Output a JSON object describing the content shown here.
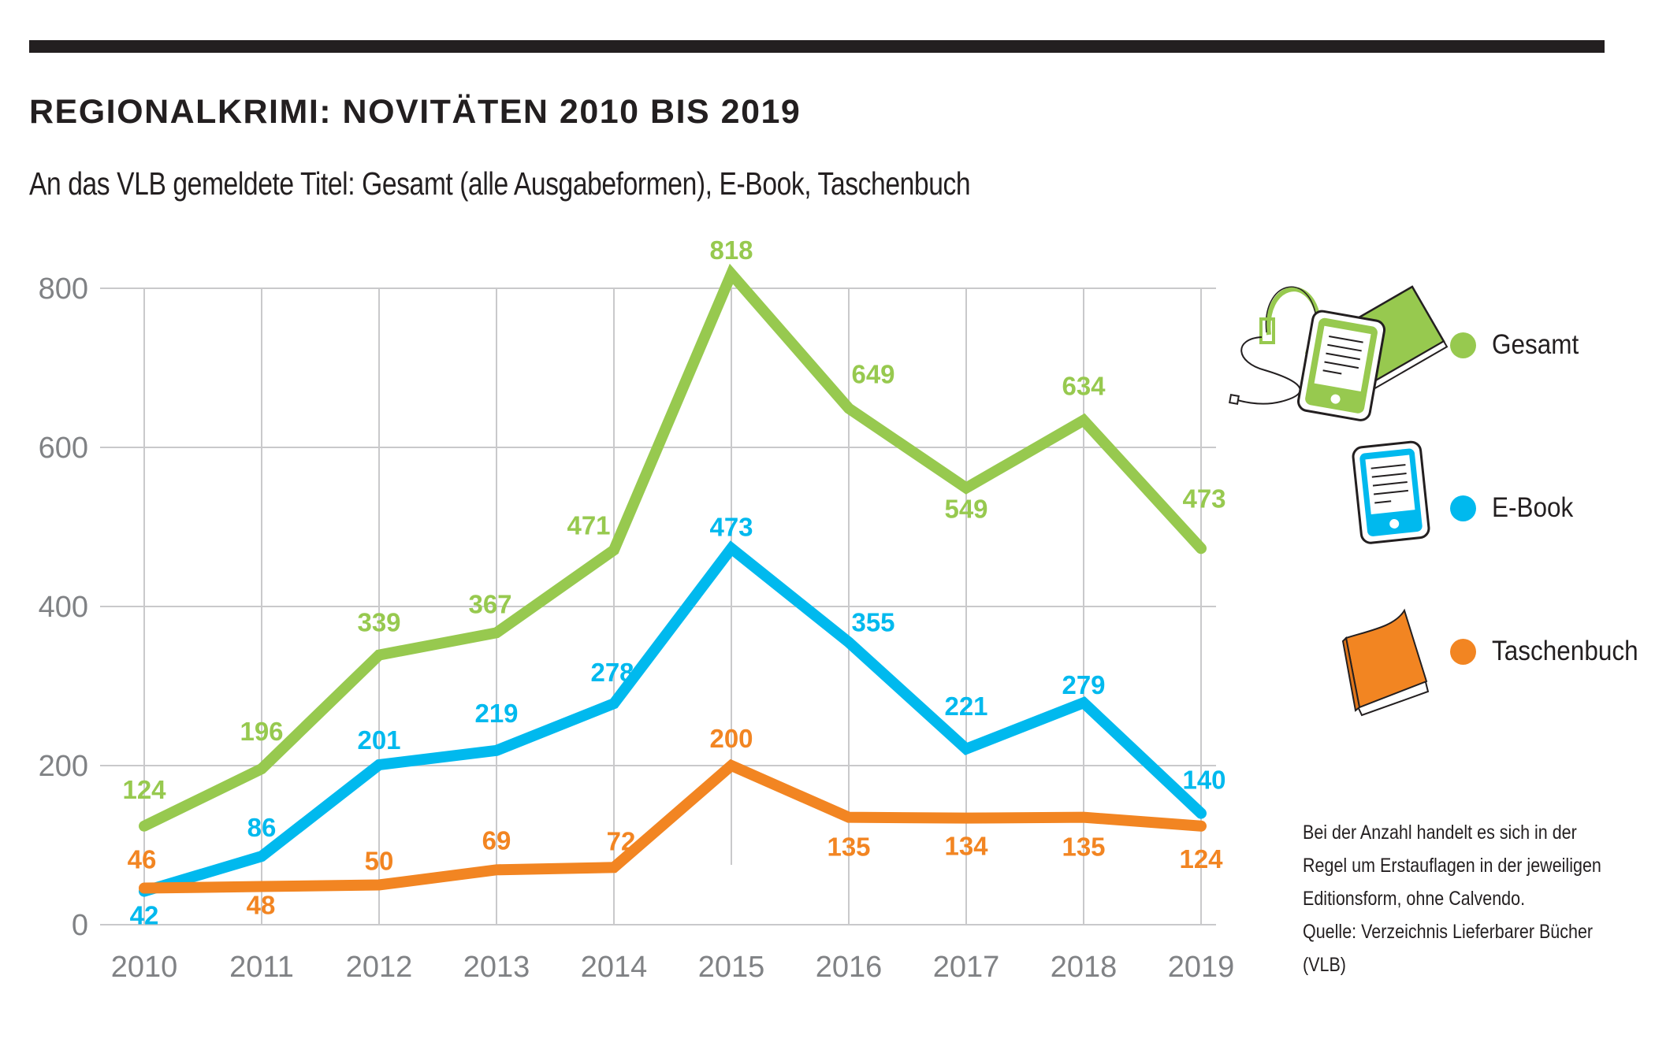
{
  "header": {
    "title": "REGIONALKRIMI: NOVITÄTEN 2010 BIS 2019",
    "subtitle": "An das VLB gemeldete Titel: Gesamt (alle Ausgabeformen), E-Book, Taschenbuch"
  },
  "legend": [
    {
      "label": "Gesamt",
      "color": "#97c94f",
      "icon": "media-bundle-icon"
    },
    {
      "label": "E-Book",
      "color": "#00b9ee",
      "icon": "tablet-icon"
    },
    {
      "label": "Taschenbuch",
      "color": "#f28522",
      "icon": "paperback-book-icon"
    }
  ],
  "footnote": {
    "lines": [
      "Bei der Anzahl handelt es sich in der",
      "Regel um Erstauflagen in der jeweiligen",
      "Editionsform, ohne Calvendo.",
      "Quelle: Verzeichnis Lieferbarer Bücher",
      "(VLB)"
    ]
  },
  "chart_data": {
    "type": "line",
    "title": "REGIONALKRIMI: NOVITÄTEN 2010 BIS 2019",
    "subtitle": "An das VLB gemeldete Titel: Gesamt (alle Ausgabeformen), E-Book, Taschenbuch",
    "xlabel": "",
    "ylabel": "",
    "x": [
      "2010",
      "2011",
      "2012",
      "2013",
      "2014",
      "2015",
      "2016",
      "2017",
      "2018",
      "2019"
    ],
    "ylim": [
      0,
      800
    ],
    "yticks": [
      0,
      200,
      400,
      600,
      800
    ],
    "grid": true,
    "legend_position": "right",
    "series": [
      {
        "name": "Gesamt",
        "color": "#97c94f",
        "values": [
          124,
          196,
          339,
          367,
          471,
          818,
          649,
          549,
          634,
          473
        ]
      },
      {
        "name": "E-Book",
        "color": "#00b9ee",
        "values": [
          42,
          86,
          201,
          219,
          278,
          473,
          355,
          221,
          279,
          140
        ]
      },
      {
        "name": "Taschenbuch",
        "color": "#f28522",
        "values": [
          46,
          48,
          50,
          69,
          72,
          200,
          135,
          134,
          135,
          124
        ]
      }
    ]
  }
}
